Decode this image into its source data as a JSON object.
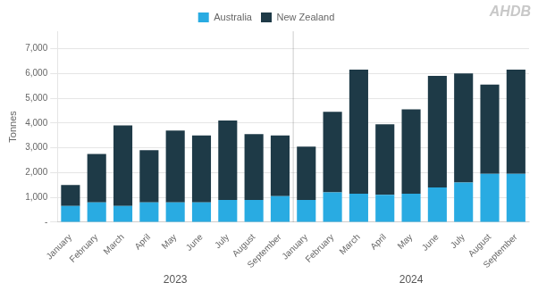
{
  "chart_data": {
    "type": "bar",
    "stacked": true,
    "ylabel": "Tonnes",
    "categories": [
      "January",
      "February",
      "March",
      "April",
      "May",
      "June",
      "July",
      "August",
      "September",
      "January",
      "February",
      "March",
      "April",
      "May",
      "June",
      "July",
      "August",
      "September"
    ],
    "series": [
      {
        "name": "Australia",
        "color": "#29abe2",
        "values": [
          650,
          800,
          650,
          800,
          800,
          800,
          900,
          900,
          1050,
          900,
          1200,
          1150,
          1100,
          1150,
          1400,
          1600,
          1950,
          1950
        ]
      },
      {
        "name": "New Zealand",
        "color": "#1e3a47",
        "values": [
          850,
          1950,
          3250,
          2100,
          2900,
          2700,
          3200,
          2650,
          2450,
          2150,
          3250,
          5000,
          2850,
          3400,
          4500,
          4400,
          3600,
          4200
        ]
      }
    ],
    "ylim": [
      0,
      7700
    ],
    "yticks": [
      {
        "value": 0,
        "label": "-"
      },
      {
        "value": 1000,
        "label": "1,000"
      },
      {
        "value": 2000,
        "label": "2,000"
      },
      {
        "value": 3000,
        "label": "3,000"
      },
      {
        "value": 4000,
        "label": "4,000"
      },
      {
        "value": 5000,
        "label": "5,000"
      },
      {
        "value": 6000,
        "label": "6,000"
      },
      {
        "value": 7000,
        "label": "7,000"
      }
    ],
    "grid": true,
    "legend": "top",
    "group_labels": [
      "2023",
      "2024"
    ],
    "watermark": "AHDB"
  }
}
